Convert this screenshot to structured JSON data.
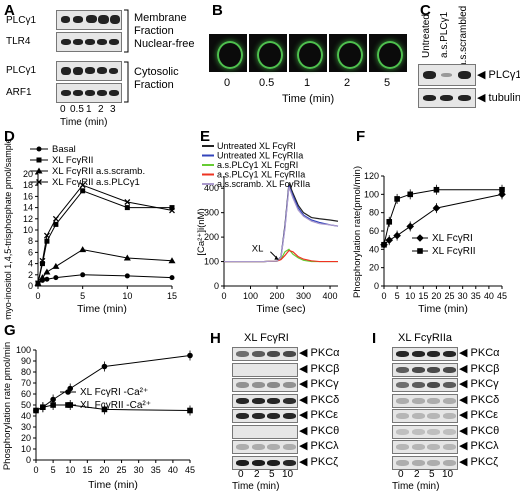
{
  "panels": {
    "A": {
      "label": "A",
      "bands": [
        "PLCγ1",
        "TLR4",
        "PLCγ1",
        "ARF1"
      ],
      "fractions": [
        "Membrane",
        "Fraction",
        "Nuclear-free",
        "Cytosolic",
        "Fraction"
      ],
      "times": [
        "0",
        "0.5",
        "1",
        "2",
        "3"
      ],
      "xlabel": "Time (min)"
    },
    "B": {
      "label": "B",
      "times": [
        "0",
        "0.5",
        "1",
        "2",
        "5"
      ],
      "xlabel": "Time (min)"
    },
    "C": {
      "label": "C",
      "lanes": [
        "Untreated",
        "a.s.PLCγ1",
        "a.s.scrambled"
      ],
      "bands": [
        "PLCγ1",
        "tubulin"
      ]
    },
    "D": {
      "label": "D",
      "ylabel": "Dmyo-inositol 1,4,5-trisphosphate pmol/sample",
      "xlabel": "Time (min)",
      "legend": [
        "Basal",
        "XL FcγRII",
        "XL FcγRII a.s.scramb.",
        "XL FcγRII a.s.PLCγ1"
      ]
    },
    "E": {
      "label": "E",
      "ylabel": "[Ca²⁺]i(nM)",
      "xlabel": "Time (sec)",
      "annotation": "XL",
      "legend": [
        "Untreated XL FcγRI",
        "Untreated XL FcγRIIa",
        "a.s.PLCγ1 XL FcgRI",
        "a.s.PLCγ1 XL FcγRIIa",
        "a.s.scramb. XL FcγRIIa"
      ]
    },
    "F": {
      "label": "F",
      "ylabel": "Phosphorylation rate(pmol/min)",
      "xlabel": "Time (min)",
      "legend": [
        "XL FcγRI",
        "XL FcγRII"
      ]
    },
    "G": {
      "label": "G",
      "ylabel": "Phosphorylation rate pmol/min",
      "xlabel": "Time (min)",
      "legend": [
        "XL FcγRI -Ca²⁺",
        "XL FcγRII -Ca²⁺"
      ]
    },
    "H": {
      "label": "H",
      "title": "XL FcγRI",
      "isoforms": [
        "PKCα",
        "PKCβ",
        "PKCγ",
        "PKCδ",
        "PKCε",
        "PKCθ",
        "PKCλ",
        "PKCζ"
      ],
      "times": [
        "0",
        "2",
        "5",
        "10"
      ],
      "xlabel": "Time (min)"
    },
    "I": {
      "label": "I",
      "title": "XL FcγRIIa",
      "isoforms": [
        "PKCα",
        "PKCβ",
        "PKCγ",
        "PKCδ",
        "PKCε",
        "PKCθ",
        "PKCλ",
        "PKCζ"
      ],
      "times": [
        "0",
        "2",
        "5",
        "10"
      ],
      "xlabel": "Time (min)"
    }
  },
  "colors": {
    "E_untreated_RI": "#222222",
    "E_untreated_RIIa": "#3344bb",
    "E_as_RI": "#66cc33",
    "E_as_RIIa": "#ee3322",
    "E_scramb": "#aa99cc"
  },
  "chart_data": [
    {
      "panel": "D",
      "type": "line",
      "xlim": [
        0,
        15
      ],
      "ylim": [
        0,
        20
      ],
      "xticks": [
        0,
        5,
        10,
        15
      ],
      "yticks": [
        0,
        2,
        4,
        6,
        8,
        10,
        12,
        14,
        16,
        18,
        20
      ],
      "x": [
        0,
        0.5,
        1,
        2,
        5,
        10,
        15
      ],
      "series": [
        {
          "name": "Basal",
          "marker": "circle",
          "values": [
            0.5,
            1,
            1.2,
            1.5,
            2,
            1.8,
            1.5
          ]
        },
        {
          "name": "XL FcγRII",
          "marker": "square",
          "values": [
            0.5,
            4,
            8,
            11,
            17,
            14,
            14
          ]
        },
        {
          "name": "XL FcγRII a.s.scramb.",
          "marker": "triangle",
          "values": [
            0.5,
            1.5,
            2.5,
            3.5,
            6.5,
            5,
            4.5
          ]
        },
        {
          "name": "XL FcγRII a.s.PLCγ1",
          "marker": "x",
          "values": [
            0.5,
            4.5,
            9,
            12,
            18,
            15,
            13.5
          ]
        }
      ]
    },
    {
      "panel": "E",
      "type": "line",
      "xlim": [
        0,
        430
      ],
      "ylim": [
        0,
        450
      ],
      "xticks": [
        0,
        100,
        200,
        300,
        400
      ],
      "yticks": [
        0,
        100,
        200,
        300,
        400
      ],
      "x": [
        0,
        50,
        100,
        150,
        200,
        215,
        230,
        245,
        260,
        280,
        300,
        330,
        360,
        400,
        430
      ],
      "series": [
        {
          "name": "Untreated XL FcγRI",
          "values": [
            100,
            100,
            100,
            100,
            102,
            120,
            250,
            420,
            380,
            330,
            300,
            280,
            275,
            270,
            265
          ]
        },
        {
          "name": "Untreated XL FcγRIIa",
          "values": [
            100,
            100,
            100,
            100,
            102,
            118,
            240,
            410,
            370,
            320,
            290,
            270,
            260,
            250,
            245
          ]
        },
        {
          "name": "a.s.PLCγ1 XL FcgRI",
          "values": [
            100,
            100,
            100,
            100,
            102,
            110,
            140,
            150,
            130,
            115,
            105,
            100,
            100,
            100,
            100
          ]
        },
        {
          "name": "a.s.PLCγ1 XL FcγRIIa",
          "values": [
            100,
            100,
            100,
            100,
            102,
            108,
            125,
            145,
            140,
            120,
            110,
            103,
            100,
            100,
            100
          ]
        },
        {
          "name": "a.s.scramb. XL FcγRIIa",
          "values": [
            100,
            100,
            100,
            100,
            102,
            118,
            235,
            405,
            360,
            310,
            285,
            265,
            255,
            250,
            245
          ]
        }
      ]
    },
    {
      "panel": "F",
      "type": "line",
      "xlim": [
        0,
        45
      ],
      "ylim": [
        0,
        120
      ],
      "xticks": [
        0,
        5,
        10,
        15,
        20,
        25,
        30,
        35,
        40,
        45
      ],
      "yticks": [
        0,
        20,
        40,
        60,
        80,
        100,
        120
      ],
      "series": [
        {
          "name": "XL FcγRI",
          "marker": "diamond",
          "x": [
            0,
            2,
            5,
            10,
            20,
            45
          ],
          "values": [
            45,
            50,
            55,
            65,
            85,
            100
          ]
        },
        {
          "name": "XL FcγRII",
          "marker": "square",
          "x": [
            0,
            2,
            5,
            10,
            20,
            45
          ],
          "values": [
            45,
            70,
            95,
            100,
            105,
            105
          ]
        }
      ]
    },
    {
      "panel": "G",
      "type": "line",
      "xlim": [
        0,
        45
      ],
      "ylim": [
        0,
        100
      ],
      "xticks": [
        0,
        5,
        10,
        15,
        20,
        25,
        30,
        35,
        40,
        45
      ],
      "yticks": [
        0,
        10,
        20,
        30,
        40,
        50,
        60,
        70,
        80,
        90,
        100
      ],
      "series": [
        {
          "name": "XL FcγRI -Ca²⁺",
          "marker": "circle",
          "x": [
            0,
            2,
            5,
            10,
            20,
            45
          ],
          "values": [
            45,
            48,
            55,
            65,
            85,
            95
          ]
        },
        {
          "name": "XL FcγRII -Ca²⁺",
          "marker": "square",
          "x": [
            0,
            2,
            5,
            10,
            20,
            45
          ],
          "values": [
            45,
            48,
            50,
            50,
            46,
            45
          ]
        }
      ]
    }
  ]
}
